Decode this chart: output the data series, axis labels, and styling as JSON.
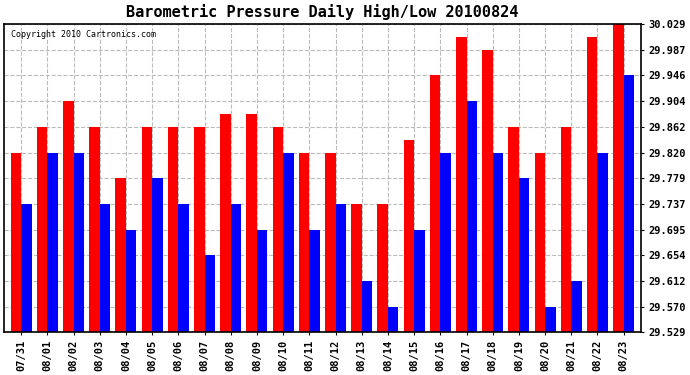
{
  "title": "Barometric Pressure Daily High/Low 20100824",
  "copyright": "Copyright 2010 Cartronics.com",
  "dates": [
    "07/31",
    "08/01",
    "08/02",
    "08/03",
    "08/04",
    "08/05",
    "08/06",
    "08/07",
    "08/08",
    "08/09",
    "08/10",
    "08/11",
    "08/12",
    "08/13",
    "08/14",
    "08/15",
    "08/16",
    "08/17",
    "08/18",
    "08/19",
    "08/20",
    "08/21",
    "08/22",
    "08/23"
  ],
  "highs": [
    29.82,
    29.862,
    29.904,
    29.862,
    29.779,
    29.862,
    29.862,
    29.862,
    29.883,
    29.883,
    29.862,
    29.82,
    29.82,
    29.737,
    29.737,
    29.84,
    29.946,
    30.008,
    29.987,
    29.862,
    29.82,
    29.862,
    30.008,
    30.029
  ],
  "lows": [
    29.737,
    29.82,
    29.82,
    29.737,
    29.695,
    29.779,
    29.737,
    29.654,
    29.737,
    29.695,
    29.82,
    29.695,
    29.737,
    29.612,
    29.57,
    29.695,
    29.82,
    29.904,
    29.82,
    29.779,
    29.57,
    29.612,
    29.82,
    29.946
  ],
  "ymin": 29.529,
  "ymax": 30.029,
  "yticks": [
    29.529,
    29.57,
    29.612,
    29.654,
    29.695,
    29.737,
    29.779,
    29.82,
    29.862,
    29.904,
    29.946,
    29.987,
    30.029
  ],
  "high_color": "#ff0000",
  "low_color": "#0000ff",
  "background_color": "#ffffff",
  "grid_color": "#bbbbbb",
  "title_fontsize": 11,
  "tick_fontsize": 7.5,
  "bar_width": 0.4,
  "yaxis_side": "right"
}
